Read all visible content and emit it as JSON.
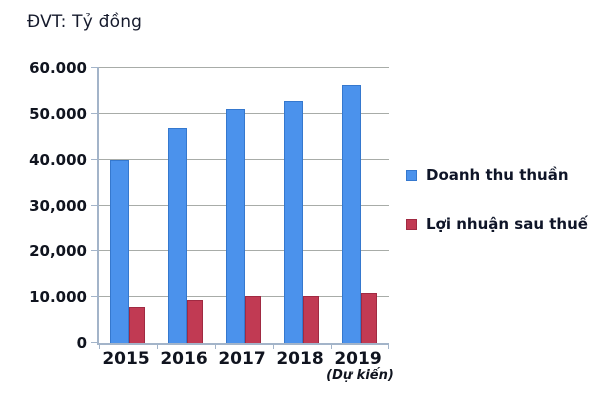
{
  "chart_data": {
    "type": "bar",
    "title": "ĐVT: Tỷ đồng",
    "categories": [
      "2015",
      "2016",
      "2017",
      "2018",
      "2019"
    ],
    "category_note": {
      "index": 4,
      "text": "(Dự kiến)"
    },
    "series": [
      {
        "name": "Doanh thu thuần",
        "values": [
          40000,
          46800,
          51000,
          52800,
          56300
        ],
        "color": "#4b92ec",
        "border_color": "#3578ce"
      },
      {
        "name": "Lợi nhuận sau thuế",
        "values": [
          7800,
          9300,
          10300,
          10200,
          10900
        ],
        "color": "#c13a53",
        "border_color": "#a02a42"
      }
    ],
    "ylim": [
      0,
      60000
    ],
    "ytick_values": [
      0,
      10000,
      20000,
      30000,
      40000,
      50000,
      60000
    ],
    "ytick_labels": [
      "0",
      "10.000",
      "20,000",
      "30,000",
      "40.000",
      "50.000",
      "60.000"
    ],
    "grid": "horizontal",
    "legend_position": "right",
    "axis_color": "#a3b4c9",
    "gridline_color": "#a8aca8"
  }
}
